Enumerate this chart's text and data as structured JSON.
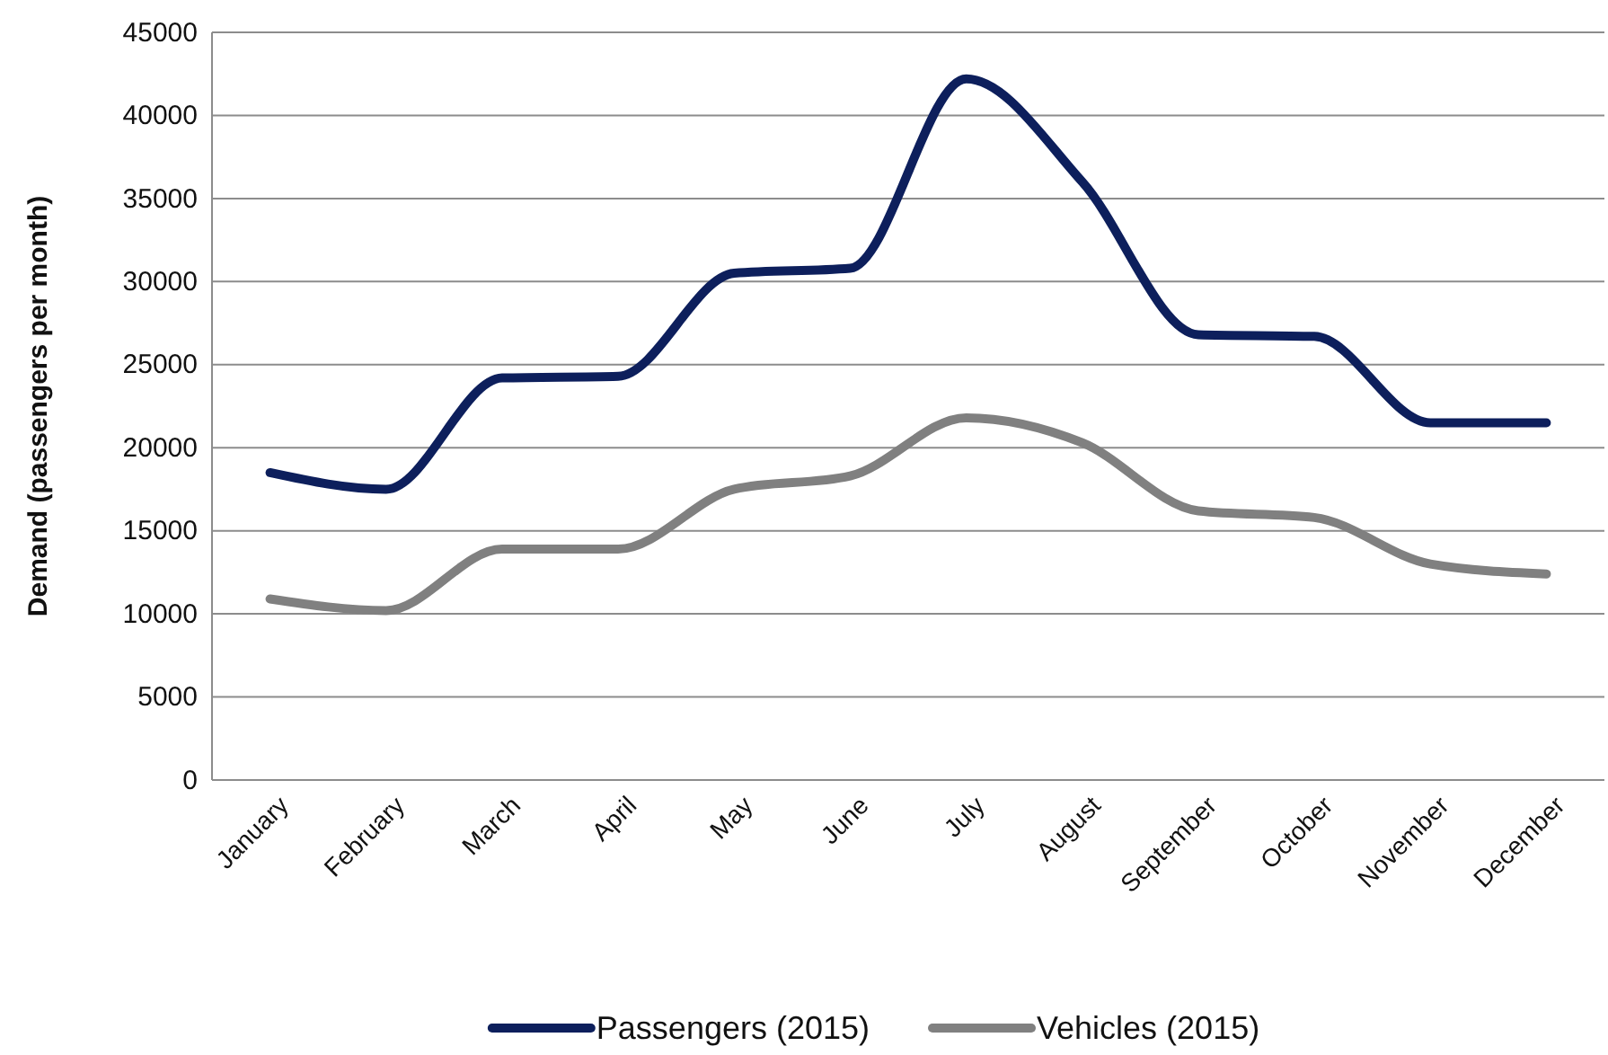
{
  "chart_data": {
    "type": "line",
    "ylabel": "Demand (passengers per month)",
    "categories": [
      "January",
      "February",
      "March",
      "April",
      "May",
      "June",
      "July",
      "August",
      "September",
      "October",
      "November",
      "December"
    ],
    "series": [
      {
        "name": "Passengers (2015)",
        "color": "#0d1f5c",
        "values": [
          18500,
          17500,
          24200,
          24300,
          30500,
          30800,
          42200,
          36000,
          26800,
          26700,
          21500,
          21500
        ]
      },
      {
        "name": "Vehicles (2015)",
        "color": "#808080",
        "values": [
          10900,
          10200,
          13900,
          13900,
          17500,
          18300,
          21800,
          20300,
          16200,
          15800,
          13000,
          12400
        ]
      }
    ],
    "ylim": [
      0,
      45000
    ],
    "yticks": [
      0,
      5000,
      10000,
      15000,
      20000,
      25000,
      30000,
      35000,
      40000,
      45000
    ],
    "grid": "y",
    "legend": "bottom",
    "marker": "none",
    "line_style": "solid"
  }
}
